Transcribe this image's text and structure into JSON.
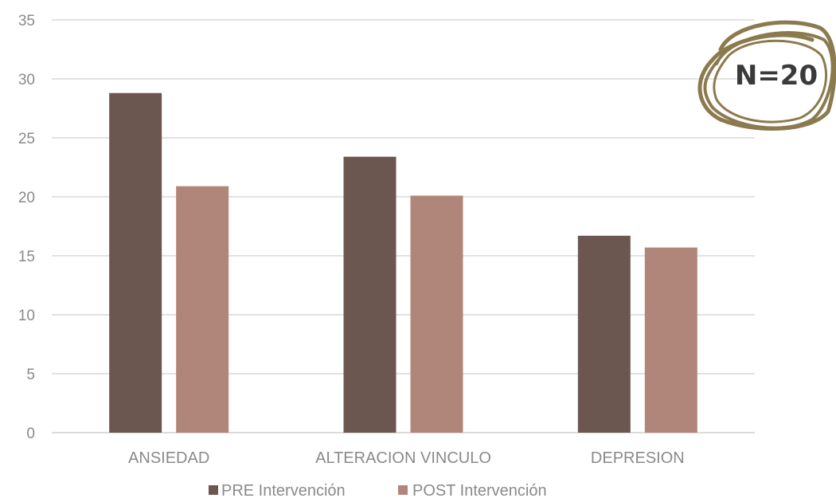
{
  "chart_data": {
    "type": "bar",
    "categories": [
      "ANSIEDAD",
      "ALTERACION VINCULO",
      "DEPRESION"
    ],
    "series": [
      {
        "name": "PRE Intervención",
        "values": [
          28.8,
          23.4,
          16.7
        ],
        "color": "#6b5750"
      },
      {
        "name": "POST Intervención",
        "values": [
          20.9,
          20.1,
          15.7
        ],
        "color": "#b0867b"
      }
    ],
    "ylim": [
      0,
      35
    ],
    "yticks": [
      "0",
      "5",
      "10",
      "15",
      "20",
      "25",
      "30",
      "35"
    ],
    "grid": true,
    "legend_position": "bottom",
    "annotation": {
      "text": "N=20",
      "circle_color": "#8c7a4f"
    }
  }
}
